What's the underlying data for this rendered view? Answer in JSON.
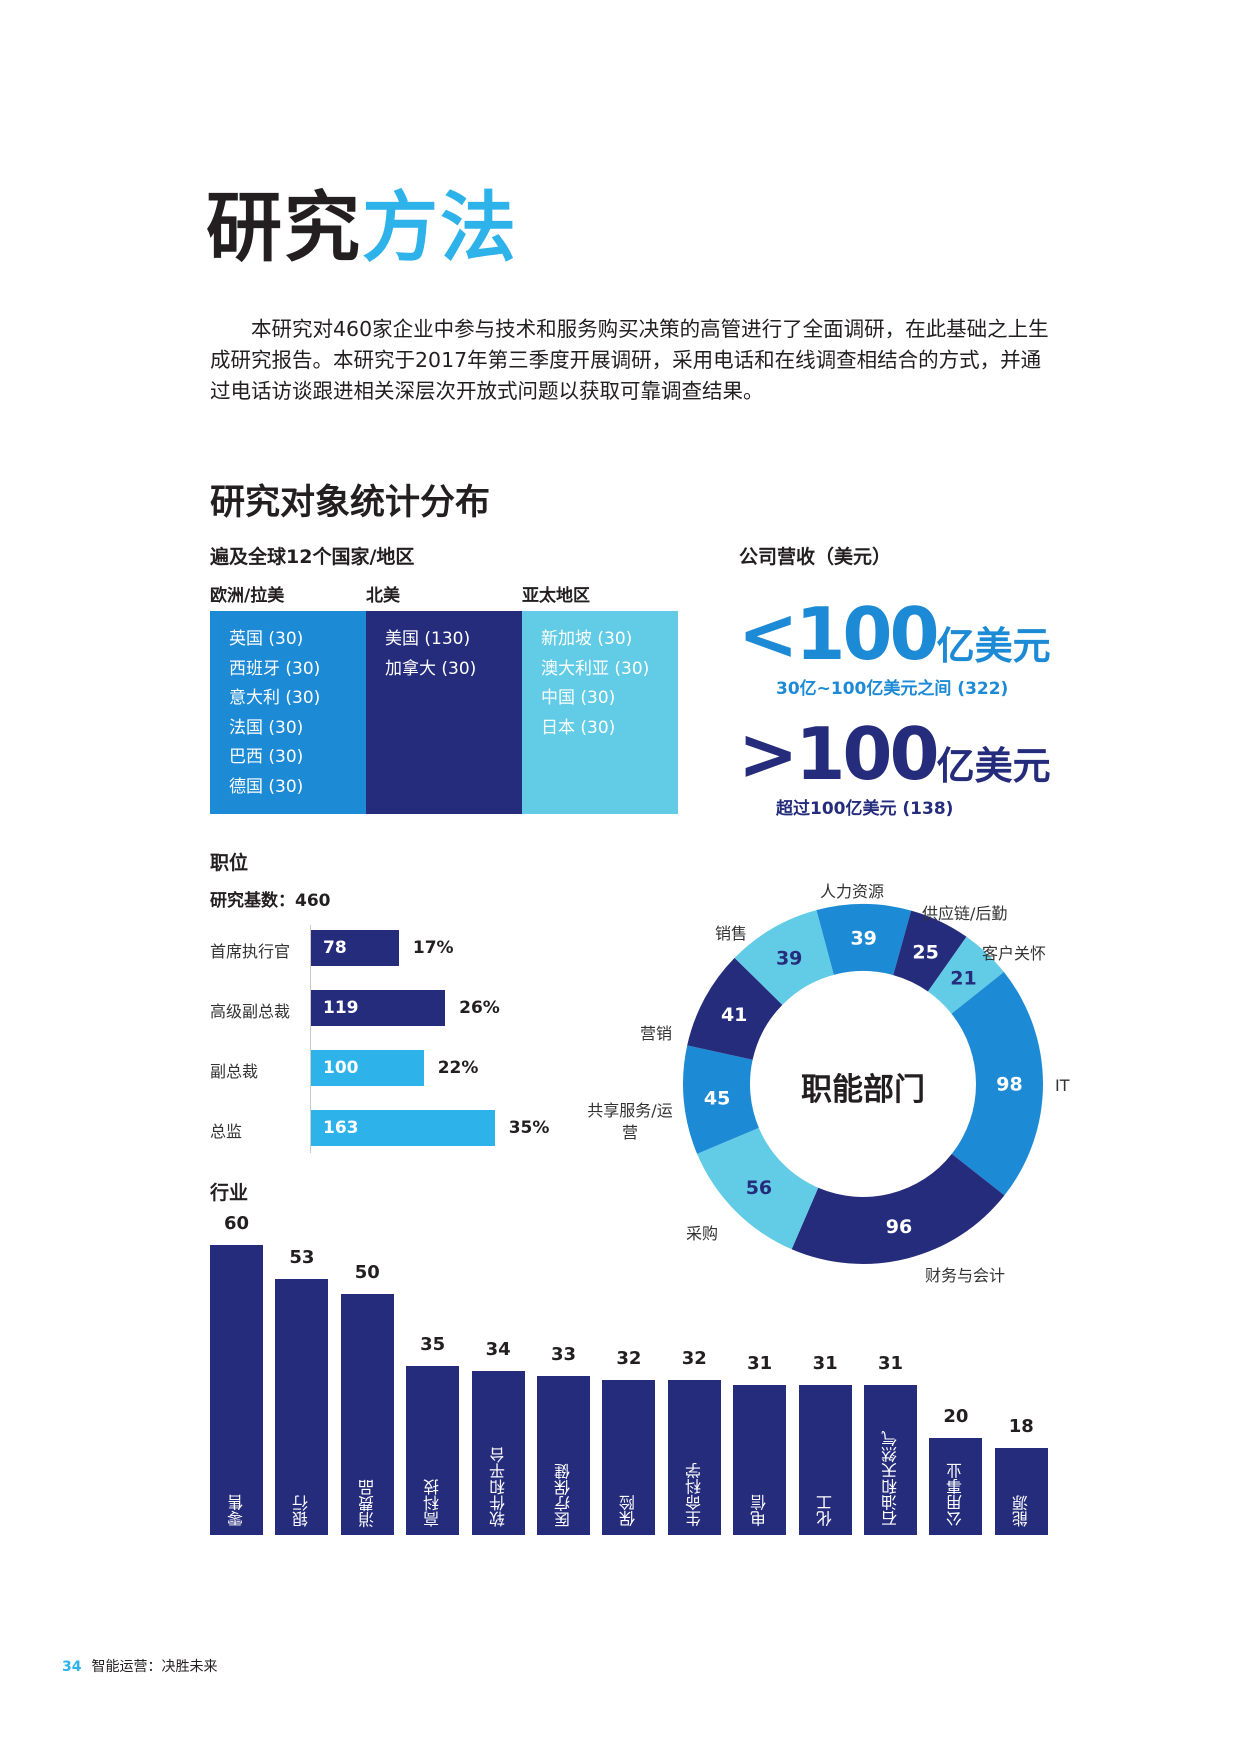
{
  "page": {
    "title_dark": "研究",
    "title_accent": "方法",
    "intro": "本研究对460家企业中参与技术和服务购买决策的高管进行了全面调研，在此基础之上生成研究报告。本研究于2017年第三季度开展调研，采用电话和在线调查相结合的方式，并通过电话访谈跟进相关深层次开放式问题以获取可靠调查结果。",
    "section_title": "研究对象统计分布"
  },
  "regions": {
    "heading": "遍及全球12个国家/地区",
    "columns": [
      {
        "name": "欧洲/拉美",
        "color": "#1d8ad6",
        "items": [
          "英国 (30)",
          "西班牙 (30)",
          "意大利 (30)",
          "法国 (30)",
          "巴西 (30)",
          "德国 (30)"
        ]
      },
      {
        "name": "北美",
        "color": "#262c7c",
        "items": [
          "美国 (130)",
          "加拿大 (30)"
        ]
      },
      {
        "name": "亚太地区",
        "color": "#62cce6",
        "items": [
          "新加坡 (30)",
          "澳大利亚 (30)",
          "中国 (30)",
          "日本 (30)"
        ]
      }
    ]
  },
  "revenue": {
    "heading": "公司营收（美元）",
    "items": [
      {
        "symbol": "<",
        "number": "100",
        "unit": "亿美元",
        "sub": "30亿~100亿美元之间 (322)",
        "color": "#1d8ad6"
      },
      {
        "symbol": ">",
        "number": "100",
        "unit": "亿美元",
        "sub": "超过100亿美元 (138)",
        "color": "#262c7c"
      }
    ]
  },
  "positions": {
    "heading": "职位",
    "base": "研究基数：460",
    "items": [
      {
        "label": "首席执行官",
        "value": 78,
        "pct": "17%",
        "color": "#262c7c"
      },
      {
        "label": "高级副总裁",
        "value": 119,
        "pct": "26%",
        "color": "#262c7c"
      },
      {
        "label": "副总裁",
        "value": 100,
        "pct": "22%",
        "color": "#2db2ea"
      },
      {
        "label": "总监",
        "value": 163,
        "pct": "35%",
        "color": "#2db2ea"
      }
    ]
  },
  "chart_data": [
    {
      "type": "bar",
      "title": "行业",
      "categories": [
        "零售",
        "银行",
        "消费品",
        "高科技",
        "软件和平台",
        "医疗保健",
        "保险",
        "生命科学",
        "电信",
        "化工",
        "石油和天然气",
        "公用事业",
        "能源"
      ],
      "values": [
        60,
        53,
        50,
        35,
        34,
        33,
        32,
        32,
        31,
        31,
        31,
        20,
        18
      ],
      "color": "#262c7c"
    },
    {
      "type": "pie",
      "title": "职能部门",
      "donut": true,
      "categories": [
        "人力资源",
        "供应链/后勤",
        "客户关怀",
        "IT",
        "财务与会计",
        "采购",
        "共享服务/运营",
        "营销",
        "销售"
      ],
      "values": [
        39,
        25,
        21,
        98,
        96,
        56,
        45,
        41,
        39
      ],
      "colors": [
        "#1d8ad6",
        "#262c7c",
        "#62cce6",
        "#1d8ad6",
        "#262c7c",
        "#62cce6",
        "#1d8ad6",
        "#262c7c",
        "#62cce6"
      ],
      "value_label_colors": [
        "#fff",
        "#fff",
        "#262c7c",
        "#fff",
        "#fff",
        "#262c7c",
        "#fff",
        "#fff",
        "#262c7c"
      ]
    }
  ],
  "footer": {
    "page_number": "34",
    "title": "智能运营：决胜未来"
  }
}
